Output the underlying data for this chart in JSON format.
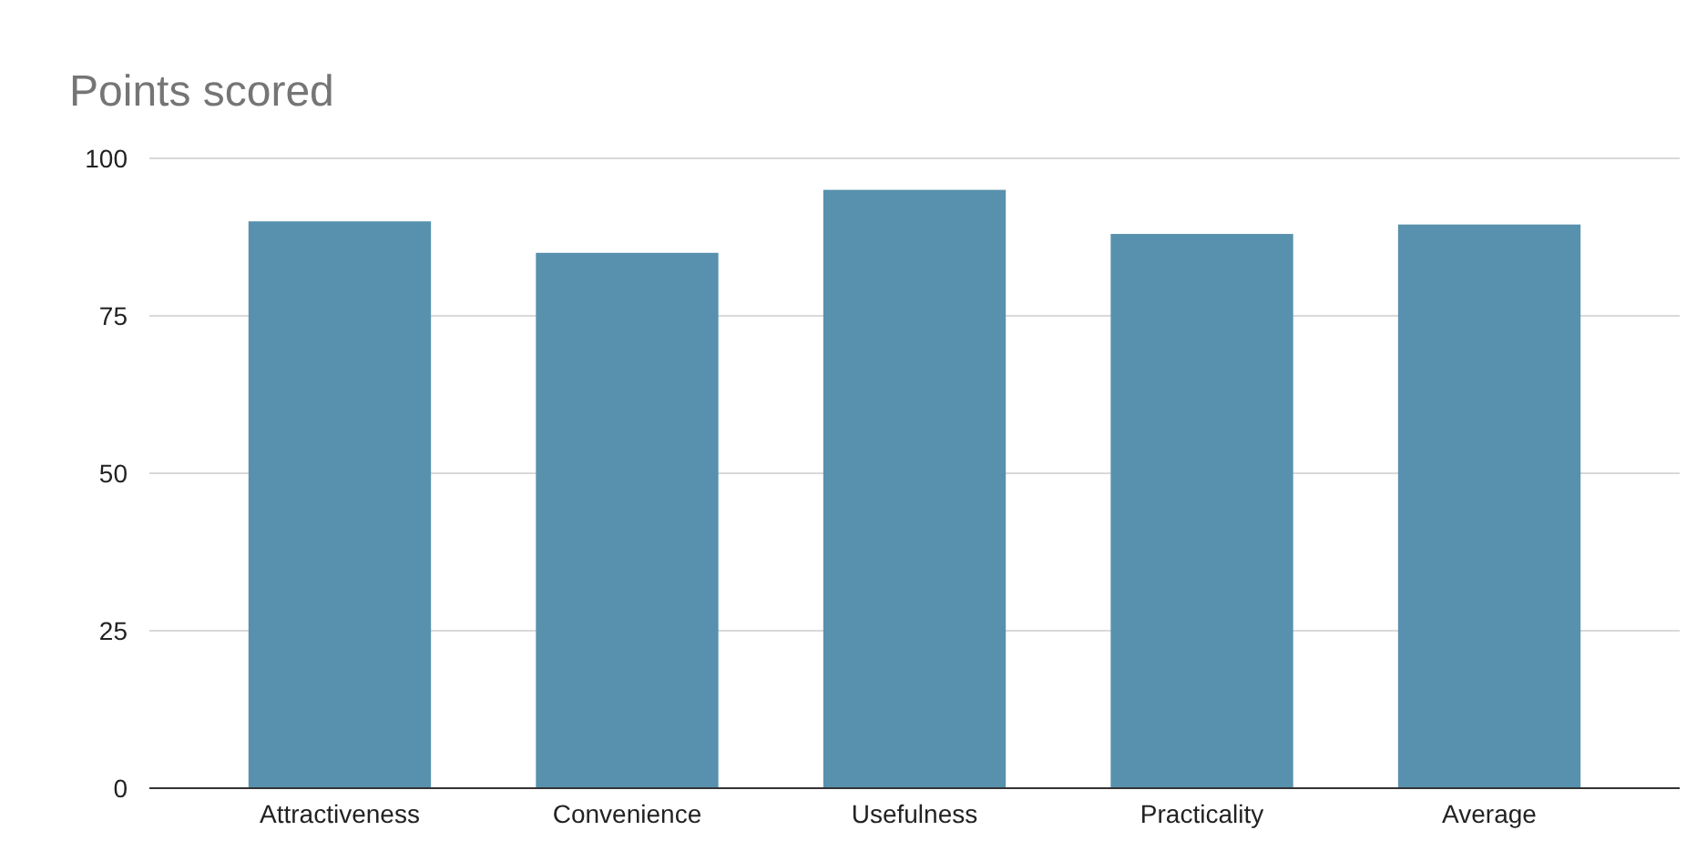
{
  "chart_data": {
    "type": "bar",
    "title": "Points scored",
    "categories": [
      "Attractiveness",
      "Convenience",
      "Usefulness",
      "Practicality",
      "Average"
    ],
    "values": [
      90,
      85,
      95,
      88,
      89.5
    ],
    "color": "#5891ad",
    "ylim": [
      0,
      100
    ],
    "yticks": [
      0,
      25,
      50,
      75,
      100
    ],
    "grid": "y"
  }
}
